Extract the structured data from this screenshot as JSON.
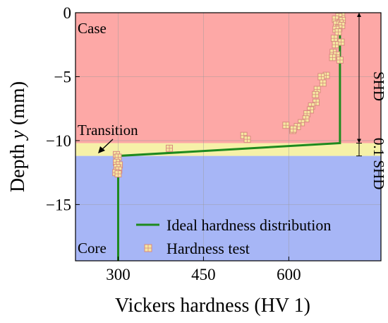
{
  "chart_data": {
    "type": "scatter",
    "xlabel": "Vickers hardness (HV 1)",
    "ylabel": "Depth y (mm)",
    "ylabel_prefix": "Depth ",
    "ylabel_var": "y",
    "ylabel_unit": " (mm)",
    "xlim": [
      225,
      762
    ],
    "ylim": [
      -19.4,
      0
    ],
    "xticks": [
      300,
      450,
      600
    ],
    "xtick_labels": [
      "300",
      "450",
      "600"
    ],
    "yticks": [
      0,
      -5,
      -10,
      -15
    ],
    "ytick_labels": [
      "0",
      "−5",
      "−10",
      "−15"
    ],
    "grid": true,
    "legend_position": "bottom-right",
    "regions": [
      {
        "name": "Case",
        "y_from": 0,
        "y_to": -10.2,
        "color": "#fda8a6"
      },
      {
        "name": "Transition",
        "y_from": -10.2,
        "y_to": -11.2,
        "color": "#f6f1a8"
      },
      {
        "name": "Core",
        "y_from": -11.2,
        "y_to": -19.4,
        "color": "#a7b6f6"
      }
    ],
    "annotations": {
      "case": "Case",
      "transition": "Transition",
      "core": "Core",
      "shd": "SHD",
      "shd_fraction": "0.1 SHD"
    },
    "series": [
      {
        "name": "Ideal hardness distribution",
        "type": "line",
        "color": "#1e8a1e",
        "x": [
          690,
          690,
          300,
          300
        ],
        "y": [
          0,
          -10.2,
          -11.2,
          -19.4
        ]
      },
      {
        "name": "Hardness test",
        "type": "scatter",
        "color": "#f6e7a0",
        "edge_color": "#d88a80",
        "x": [
          693,
          688,
          682,
          694,
          690,
          684,
          693,
          688,
          683,
          687,
          680,
          692,
          682,
          678,
          684,
          690,
          677,
          666,
          657,
          660,
          650,
          647,
          648,
          640,
          638,
          632,
          630,
          622,
          615,
          607,
          595,
          608,
          521,
          527,
          390,
          297,
          300,
          297,
          302,
          298,
          301,
          296,
          300
        ],
        "y": [
          -0.2,
          -0.3,
          -0.5,
          -0.6,
          -0.8,
          -0.9,
          -1.0,
          -1.2,
          -1.3,
          -1.5,
          -2.0,
          -2.3,
          -2.5,
          -3.1,
          -3.3,
          -3.7,
          -3.5,
          -4.9,
          -5.0,
          -5.5,
          -6.0,
          -6.4,
          -7.0,
          -7.3,
          -7.6,
          -7.9,
          -8.3,
          -8.6,
          -8.9,
          -9.2,
          -8.8,
          -9.1,
          -9.6,
          -9.9,
          -10.6,
          -11.1,
          -11.3,
          -11.7,
          -11.9,
          -12.1,
          -12.3,
          -12.5,
          -12.6
        ]
      }
    ]
  }
}
